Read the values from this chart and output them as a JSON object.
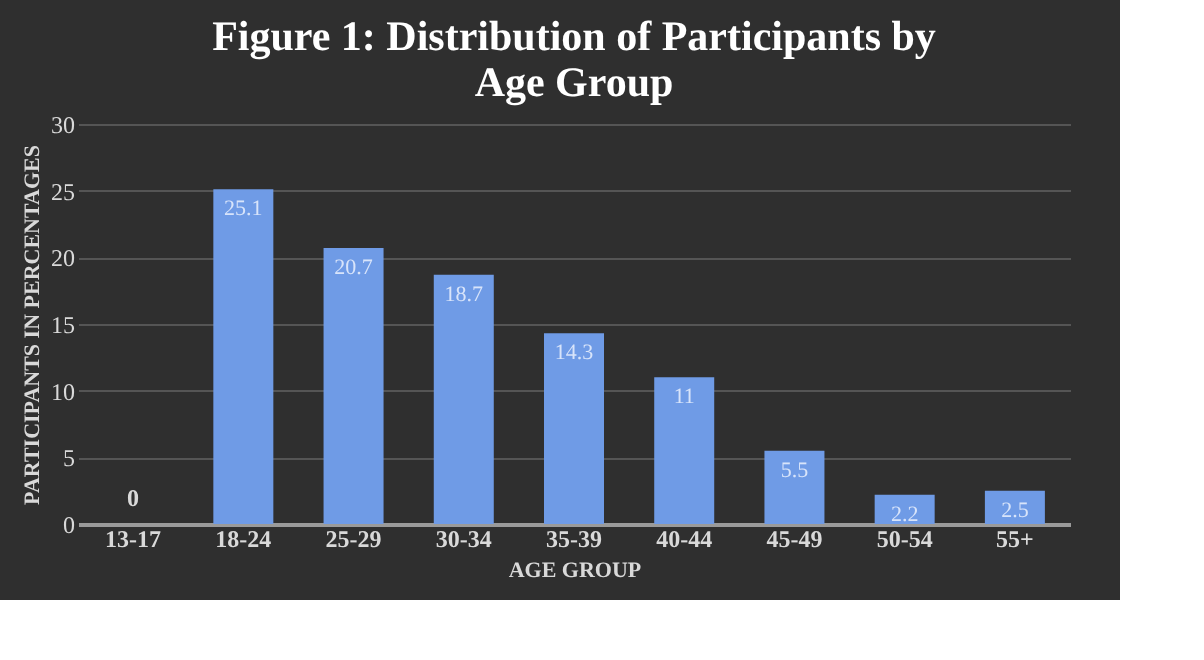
{
  "chart_data": {
    "type": "bar",
    "title": [
      "Figure 1: Distribution of Participants by",
      "Age Group"
    ],
    "xlabel": "AGE GROUP",
    "ylabel": "PARTICIPANTS IN PERCENTAGES",
    "categories": [
      "13-17",
      "18-24",
      "25-29",
      "30-34",
      "35-39",
      "40-44",
      "45-49",
      "50-54",
      "55+"
    ],
    "values": [
      0,
      25.1,
      20.7,
      18.7,
      14.3,
      11,
      5.5,
      2.2,
      2.5
    ],
    "color": "#6f9be6",
    "ylim": [
      0,
      30
    ],
    "yticks": [
      0,
      5,
      10,
      15,
      20,
      25,
      30
    ],
    "grid": "y",
    "data_labels": true
  }
}
